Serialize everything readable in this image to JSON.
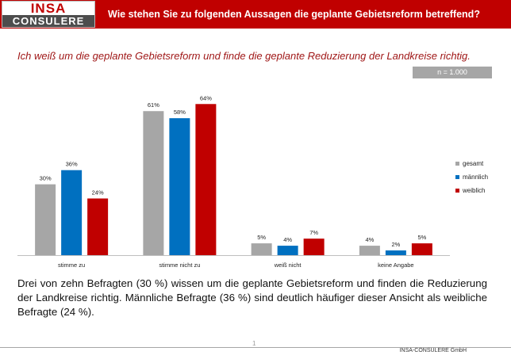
{
  "header": {
    "logo_top": "INSA",
    "logo_bottom": "CONSULERE",
    "title": "Wie stehen Sie zu folgenden Aussagen die geplante Gebietsreform betreffend?"
  },
  "statement": "Ich weiß um die geplante Gebietsreform und finde die geplante Reduzierung der Landkreise richtig.",
  "sample_size": "n = 1.000",
  "colors": {
    "gesamt": "#a6a6a6",
    "männlich": "#0070c0",
    "weiblich": "#c00000",
    "header": "#c00000"
  },
  "chart_data": {
    "type": "bar",
    "categories": [
      "stimme zu",
      "stimme nicht zu",
      "weiß nicht",
      "keine Angabe"
    ],
    "series": [
      {
        "name": "gesamt",
        "values": [
          30,
          61,
          5,
          4
        ],
        "labels": [
          "30%",
          "61%",
          "5%",
          "4%"
        ],
        "color": "#a6a6a6"
      },
      {
        "name": "männlich",
        "values": [
          36,
          58,
          4,
          2
        ],
        "labels": [
          "36%",
          "58%",
          "4%",
          "2%"
        ],
        "color": "#0070c0"
      },
      {
        "name": "weiblich",
        "values": [
          24,
          64,
          7,
          5
        ],
        "labels": [
          "24%",
          "64%",
          "7%",
          "5%"
        ],
        "color": "#c00000"
      }
    ],
    "unit": "%",
    "legend_position": "right",
    "ylim": [
      0,
      70
    ],
    "grid": false
  },
  "summary": "Drei von zehn Befragten (30 %) wissen um die geplante Gebietsreform und finden die Reduzierung der Landkreise richtig. Männliche Befragte (36 %) sind deutlich häufiger dieser Ansicht als weibliche Befragte (24 %).",
  "footer": {
    "page": "1",
    "brand": "INSA-CONSULERE GmbH"
  }
}
